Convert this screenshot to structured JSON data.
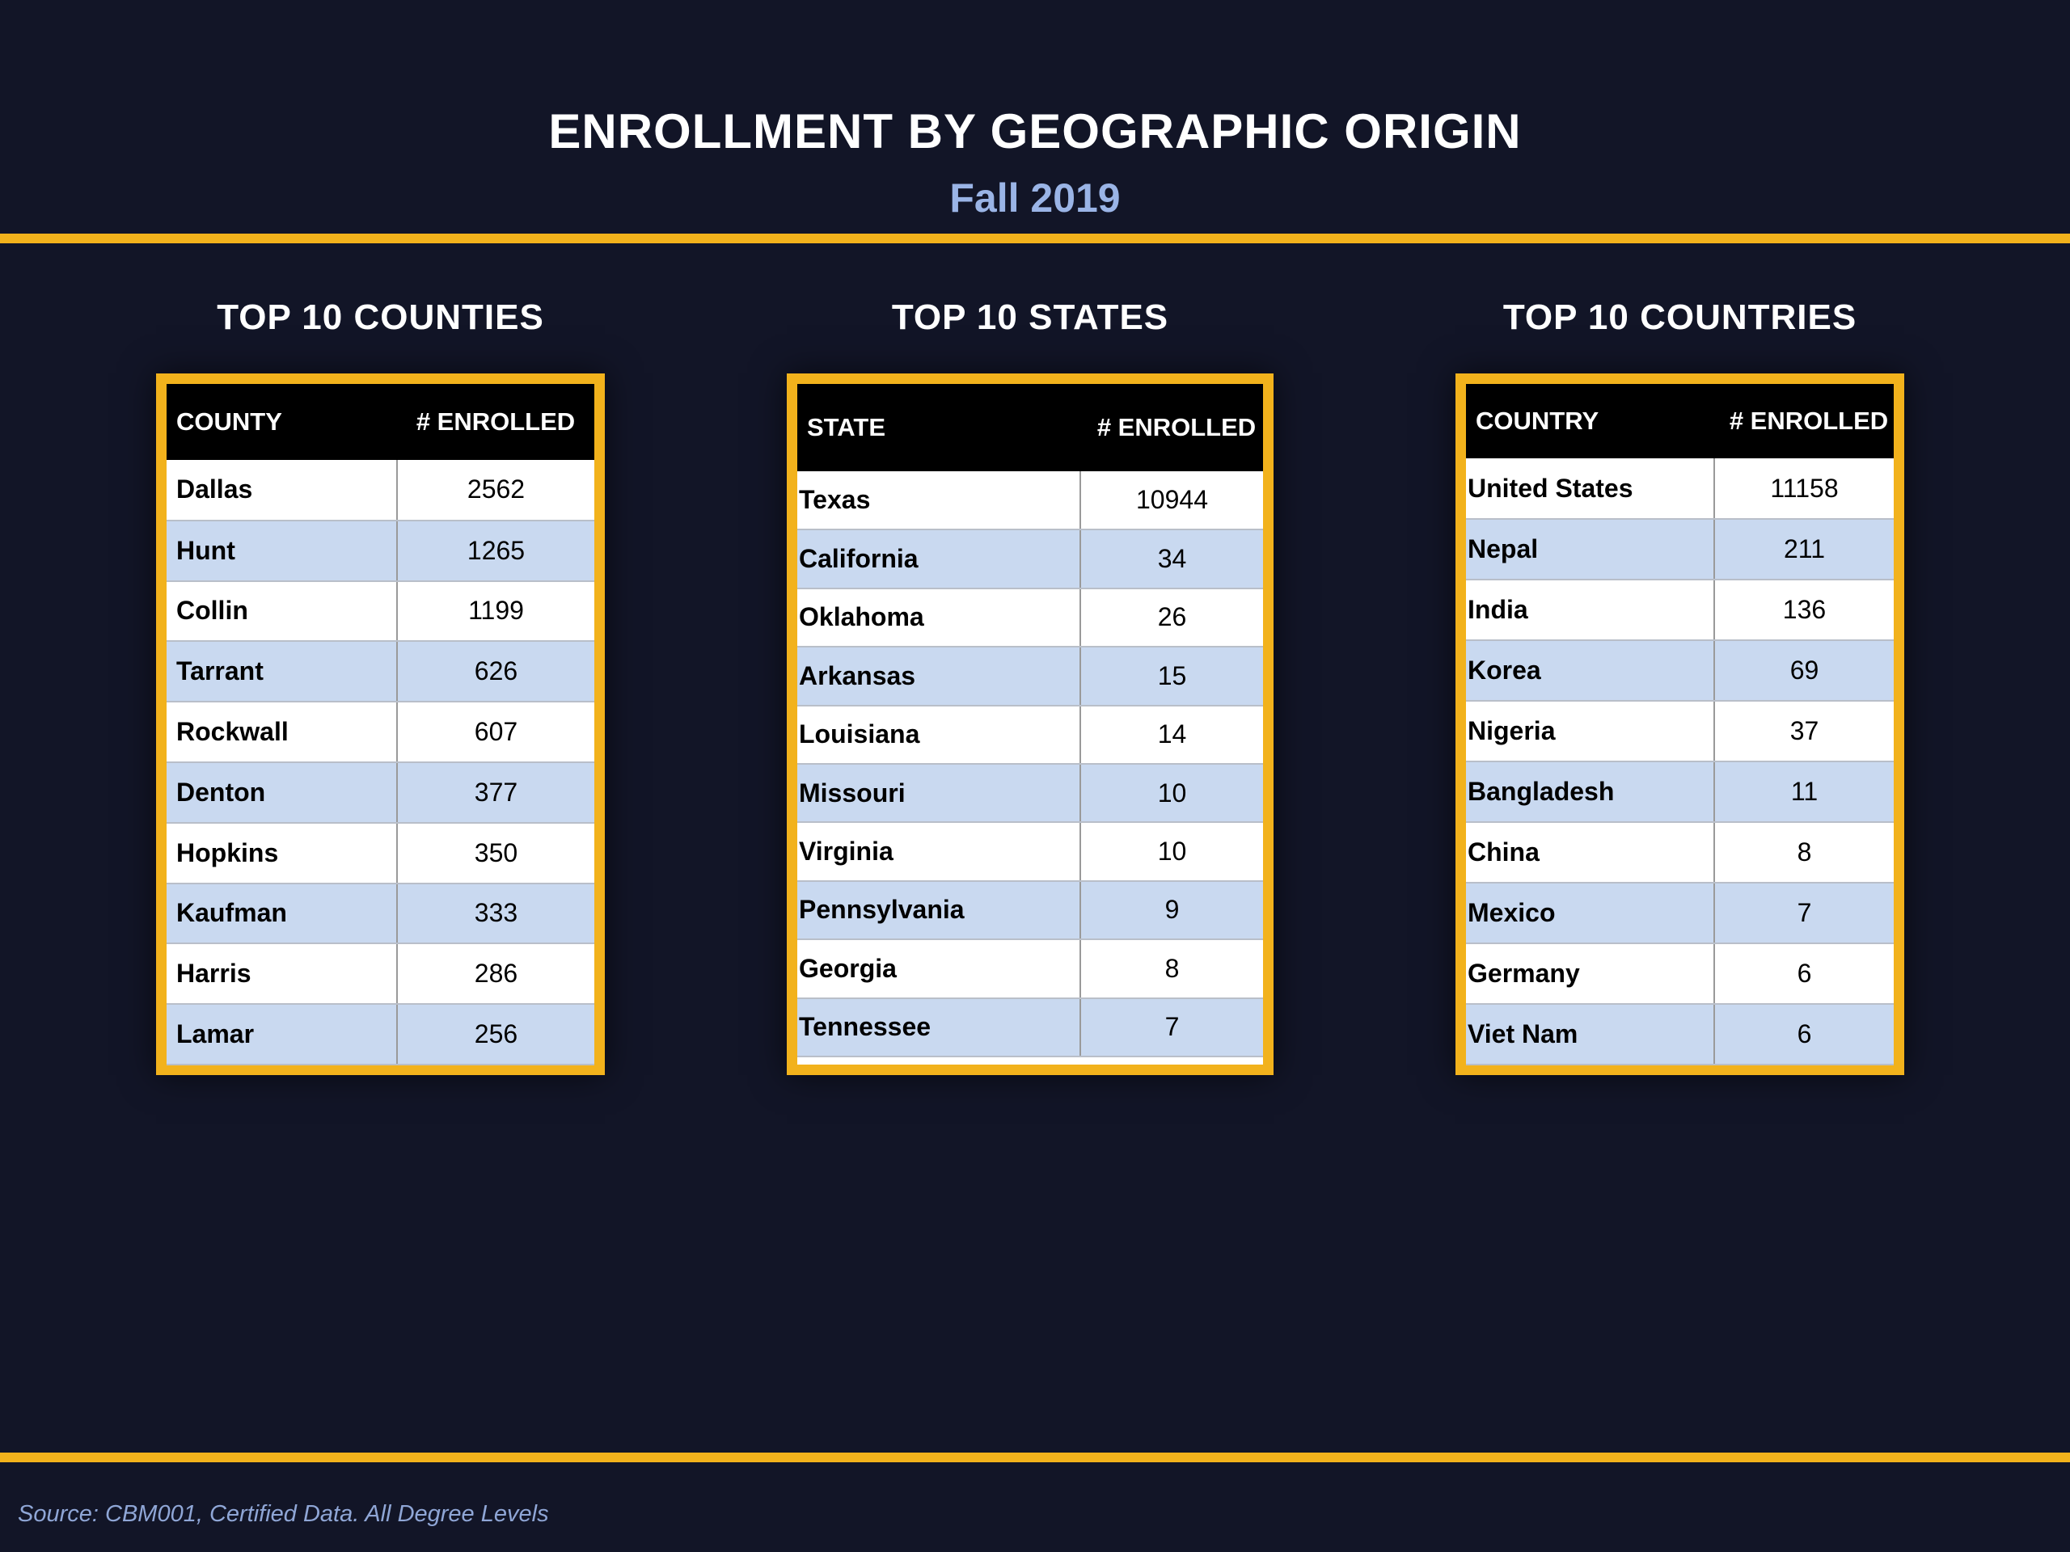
{
  "header": {
    "title": "ENROLLMENT BY GEOGRAPHIC ORIGIN",
    "subtitle": "Fall 2019"
  },
  "counties": {
    "heading": "TOP 10 COUNTIES",
    "col_name": "COUNTY",
    "col_value": "# ENROLLED",
    "rows": [
      {
        "name": "Dallas",
        "value": "2562"
      },
      {
        "name": "Hunt",
        "value": "1265"
      },
      {
        "name": "Collin",
        "value": "1199"
      },
      {
        "name": "Tarrant",
        "value": "626"
      },
      {
        "name": "Rockwall",
        "value": "607"
      },
      {
        "name": "Denton",
        "value": "377"
      },
      {
        "name": "Hopkins",
        "value": "350"
      },
      {
        "name": "Kaufman",
        "value": "333"
      },
      {
        "name": "Harris",
        "value": "286"
      },
      {
        "name": "Lamar",
        "value": "256"
      }
    ]
  },
  "states": {
    "heading": "TOP 10 STATES",
    "col_name": "STATE",
    "col_value": "# ENROLLED",
    "rows": [
      {
        "name": "Texas",
        "value": "10944"
      },
      {
        "name": "California",
        "value": "34"
      },
      {
        "name": "Oklahoma",
        "value": "26"
      },
      {
        "name": "Arkansas",
        "value": "15"
      },
      {
        "name": "Louisiana",
        "value": "14"
      },
      {
        "name": "Missouri",
        "value": "10"
      },
      {
        "name": "Virginia",
        "value": "10"
      },
      {
        "name": "Pennsylvania",
        "value": "9"
      },
      {
        "name": "Georgia",
        "value": "8"
      },
      {
        "name": "Tennessee",
        "value": "7"
      }
    ]
  },
  "countries": {
    "heading": "TOP 10 COUNTRIES",
    "col_name": "COUNTRY",
    "col_value": "# ENROLLED",
    "rows": [
      {
        "name": "United States",
        "value": "11158"
      },
      {
        "name": "Nepal",
        "value": "211"
      },
      {
        "name": "India",
        "value": "136"
      },
      {
        "name": "Korea",
        "value": "69"
      },
      {
        "name": "Nigeria",
        "value": "37"
      },
      {
        "name": "Bangladesh",
        "value": "11"
      },
      {
        "name": "China",
        "value": "8"
      },
      {
        "name": "Mexico",
        "value": "7"
      },
      {
        "name": "Germany",
        "value": "6"
      },
      {
        "name": "Viet Nam",
        "value": "6"
      }
    ]
  },
  "footer": {
    "source": "Source: CBM001, Certified Data. All Degree Levels"
  },
  "colors": {
    "background": "#121527",
    "accent_gold": "#f2b21c",
    "subtitle_blue": "#9ab4e6",
    "row_alt_blue": "#c9d9f0"
  }
}
